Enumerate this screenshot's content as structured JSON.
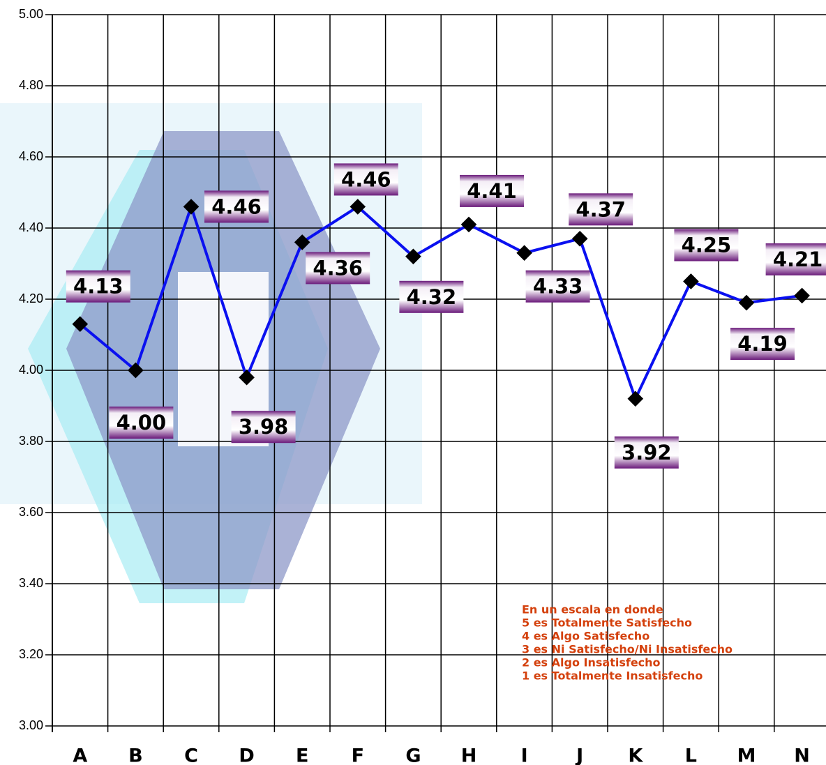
{
  "chart_data": {
    "type": "line",
    "categories": [
      "A",
      "B",
      "C",
      "D",
      "E",
      "F",
      "G",
      "H",
      "I",
      "J",
      "K",
      "L",
      "M",
      "N"
    ],
    "series": [
      {
        "color": "#0a10f0",
        "values": [
          4.13,
          4.0,
          4.46,
          3.98,
          4.36,
          4.46,
          4.32,
          4.41,
          4.33,
          4.37,
          3.92,
          4.25,
          4.19,
          4.21
        ],
        "value_labels": [
          "4.13",
          "4.00",
          "4.46",
          "3.98",
          "4.36",
          "4.46",
          "4.32",
          "4.41",
          "4.33",
          "4.37",
          "3.92",
          "4.25",
          "4.19",
          "4.21"
        ]
      }
    ],
    "ylim": [
      3,
      5
    ],
    "yticks": [
      {
        "value": 3,
        "label": "3.00"
      },
      {
        "value": 3.2,
        "label": "3.20"
      },
      {
        "value": 3.4,
        "label": "3.40"
      },
      {
        "value": 3.6,
        "label": "3.60"
      },
      {
        "value": 3.8,
        "label": "3.80"
      },
      {
        "value": 4,
        "label": "4.00"
      },
      {
        "value": 4.2,
        "label": "4.20"
      },
      {
        "value": 4.4,
        "label": "4.40"
      },
      {
        "value": 4.6,
        "label": "4.60"
      },
      {
        "value": 4.8,
        "label": "4.80"
      },
      {
        "value": 5,
        "label": "5.00"
      }
    ],
    "grid": true,
    "annotation": [
      "En un escala en donde",
      "5 es Totalmente Satisfecho",
      "4 es Algo Satisfecho",
      "3 es Ni Satisfecho/Ni Insatisfecho",
      "2 es Algo Insatisfecho",
      "1 es Totalmente Insatisfecho"
    ]
  }
}
